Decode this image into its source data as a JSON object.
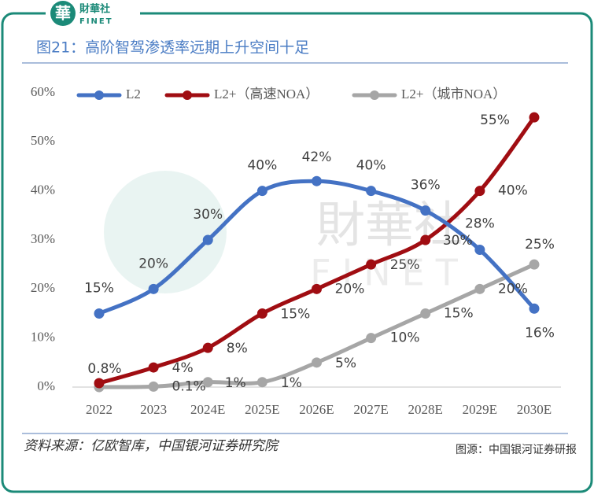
{
  "header": {
    "logo": "華",
    "brand": "財華社",
    "brand_en": "FINET"
  },
  "chart_data": {
    "type": "line",
    "title": "图21：高阶智驾渗透率远期上升空间十足",
    "categories": [
      "2022",
      "2023",
      "2024E",
      "2025E",
      "2026E",
      "2027E",
      "2028E",
      "2029E",
      "2030E"
    ],
    "series": [
      {
        "name": "L2",
        "color": "#4472c4",
        "values": [
          15,
          20,
          30,
          40,
          42,
          40,
          36,
          28,
          16
        ],
        "value_labels": [
          "15%",
          "20%",
          "30%",
          "40%",
          "42%",
          "40%",
          "36%",
          "28%",
          "16%"
        ]
      },
      {
        "name": "L2+（高速NOA）",
        "color": "#a00d12",
        "values": [
          0.8,
          4,
          8,
          15,
          20,
          25,
          30,
          40,
          55
        ],
        "value_labels": [
          "0.8%",
          "4%",
          "8%",
          "15%",
          "20%",
          "25%",
          "30%",
          "40%",
          "55%"
        ]
      },
      {
        "name": "L2+（城市NOA）",
        "color": "#a6a6a6",
        "values": [
          0,
          0.1,
          1,
          1,
          5,
          10,
          15,
          20,
          25
        ],
        "value_labels": [
          null,
          "0.1%",
          "1%",
          "1%",
          "5%",
          "10%",
          "15%",
          "20%",
          "25%"
        ]
      }
    ],
    "ylim": [
      0,
      60
    ],
    "yticks": [
      {
        "value": 0,
        "label": "0%"
      },
      {
        "value": 10,
        "label": "10%"
      },
      {
        "value": 20,
        "label": "20%"
      },
      {
        "value": 30,
        "label": "30%"
      },
      {
        "value": 40,
        "label": "40%"
      },
      {
        "value": 50,
        "label": "50%"
      },
      {
        "value": 60,
        "label": "60%"
      }
    ],
    "grid": false,
    "legend": "top",
    "watermark": [
      "財華社",
      "FINET"
    ],
    "source": "资料来源：亿欧智库，中国银河证券研究院"
  },
  "footer": {
    "credit": "图源：中国银河证券研报"
  }
}
